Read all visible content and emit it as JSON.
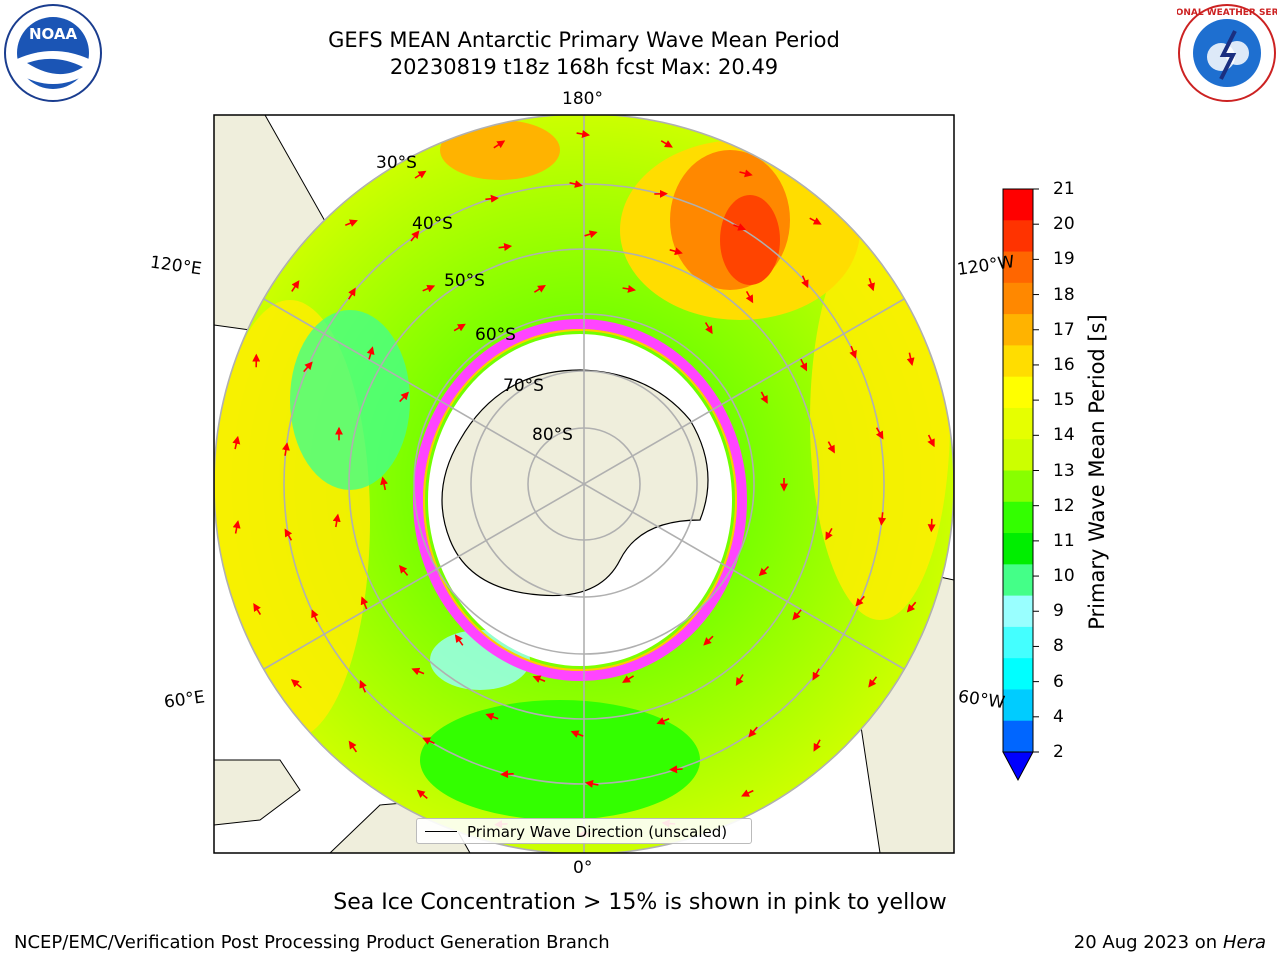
{
  "title": {
    "line1": "GEFS MEAN Antarctic Primary Wave Mean Period",
    "line2": "20230819 t18z 168h fcst   Max: 20.49"
  },
  "map": {
    "lon_labels": [
      "180°",
      "120°E",
      "120°W",
      "60°E",
      "60°W",
      "0°"
    ],
    "lat_labels": [
      "30°S",
      "40°S",
      "50°S",
      "60°S",
      "70°S",
      "80°S"
    ],
    "legend_label": "Primary Wave Direction (unscaled)",
    "arrow_color": "#ff0000",
    "land_color": "#efeedc",
    "sea_ice_color": "#ff44ff"
  },
  "colorbar": {
    "label": "Primary Wave Mean Period [s]",
    "ticks": [
      "21",
      "20",
      "19",
      "18",
      "17",
      "16",
      "15",
      "14",
      "13",
      "12",
      "11",
      "10",
      "9",
      "8",
      "6",
      "4",
      "2"
    ],
    "colors_top_to_bottom": [
      "#ff0000",
      "#ff3300",
      "#ff6600",
      "#ff8800",
      "#ffb300",
      "#ffdd00",
      "#ffff00",
      "#e6ff00",
      "#ccff00",
      "#88ff00",
      "#33ff00",
      "#00ee00",
      "#44ff88",
      "#99ffff",
      "#44ffff",
      "#00ffff",
      "#00ccff",
      "#0066ff"
    ],
    "underflow_color": "#0000ff"
  },
  "footer": {
    "note": "Sea Ice Concentration > 15% is shown in pink to yellow",
    "left": "NCEP/EMC/Verification Post Processing Product Generation Branch",
    "right_date": "20 Aug 2023 on",
    "right_machine": "Hera"
  },
  "logos": {
    "noaa_text": "NOAA",
    "nws_text": "NATIONAL WEATHER SERVICE"
  }
}
